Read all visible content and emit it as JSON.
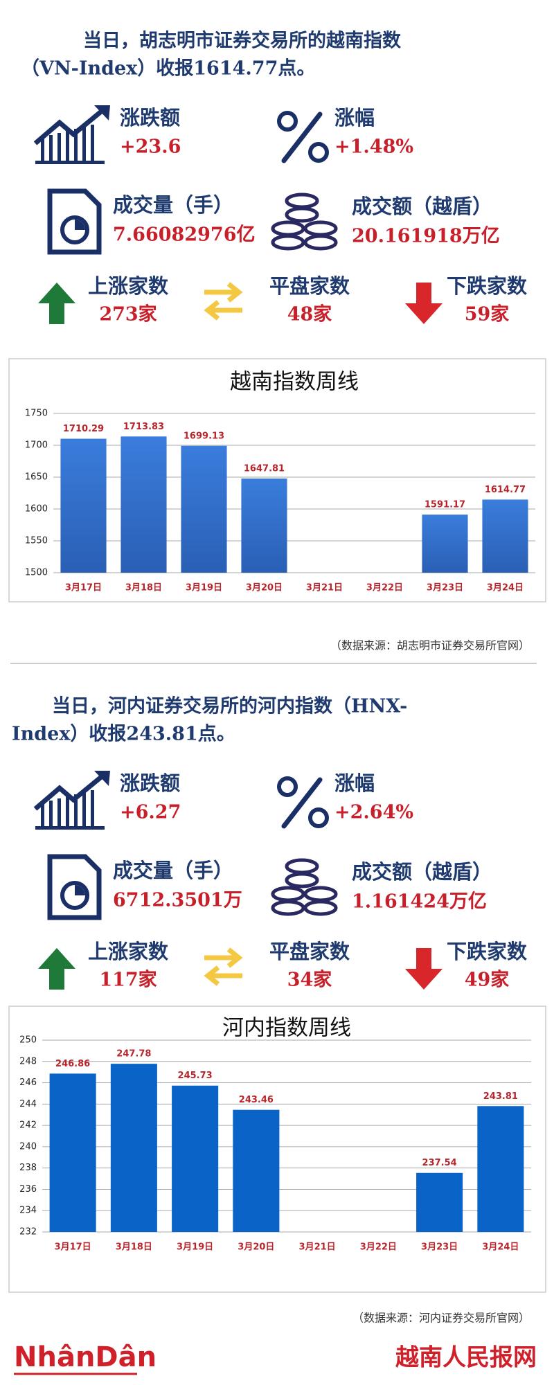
{
  "sections": [
    {
      "title_lines": [
        "当日，胡志明市证券交易所的越南指数",
        "（VN-Index）收报1614.77点。"
      ],
      "stats": [
        {
          "label": "涨跌额",
          "value": "+23.6"
        },
        {
          "label": "涨幅",
          "value": "+1.48%"
        },
        {
          "label": "成交量（手）",
          "value": "7.66082976亿"
        },
        {
          "label": "成交额（越盾）",
          "value": "20.161918万亿"
        },
        {
          "label": "上涨家数",
          "value": "273家"
        },
        {
          "label": "平盘家数",
          "value": "48家"
        },
        {
          "label": "下跌家数",
          "value": "59家"
        }
      ],
      "source": "（数据来源：胡志明市证券交易所官网）"
    },
    {
      "title_lines": [
        "当日，河内证券交易所的河内指数（HNX-",
        "Index）收报243.81点。"
      ],
      "stats": [
        {
          "label": "涨跌额",
          "value": "+6.27"
        },
        {
          "label": "涨幅",
          "value": "+2.64%"
        },
        {
          "label": "成交量（手）",
          "value": "6712.3501万"
        },
        {
          "label": "成交额（越盾）",
          "value": "1.161424万亿"
        },
        {
          "label": "上涨家数",
          "value": "117家"
        },
        {
          "label": "平盘家数",
          "value": "34家"
        },
        {
          "label": "下跌家数",
          "value": "49家"
        }
      ],
      "source": "（数据来源：河内证券交易所官网）"
    }
  ],
  "chart_data": [
    {
      "type": "bar",
      "title": "越南指数周线",
      "categories": [
        "3月17日",
        "3月18日",
        "3月19日",
        "3月20日",
        "3月21日",
        "3月22日",
        "3月23日",
        "3月24日"
      ],
      "values": [
        1710.29,
        1713.83,
        1699.13,
        1647.81,
        null,
        null,
        1591.17,
        1614.77
      ],
      "color": "#3576d2",
      "ylim": [
        1500,
        1750
      ],
      "yticks": [
        1500,
        1550,
        1600,
        1650,
        1700,
        1750
      ],
      "grid": true
    },
    {
      "type": "bar",
      "title": "河内指数周线",
      "categories": [
        "3月17日",
        "3月18日",
        "3月19日",
        "3月20日",
        "3月21日",
        "3月22日",
        "3月23日",
        "3月24日"
      ],
      "values": [
        246.86,
        247.78,
        245.73,
        243.46,
        null,
        null,
        237.54,
        243.81
      ],
      "color": "#0a64c8",
      "ylim": [
        232,
        250
      ],
      "yticks": [
        232,
        234,
        236,
        238,
        240,
        242,
        244,
        246,
        248,
        250
      ],
      "grid": true
    }
  ],
  "footer": {
    "logo": "NhânDân",
    "site": "越南人民报网"
  }
}
